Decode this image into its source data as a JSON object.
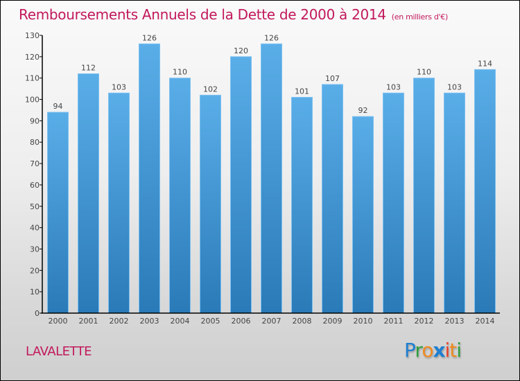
{
  "chart_data": {
    "type": "bar",
    "title": "Remboursements Annuels de la Dette de 2000 à 2014",
    "subtitle": "(en milliers d'€)",
    "categories": [
      "2000",
      "2001",
      "2002",
      "2003",
      "2004",
      "2005",
      "2006",
      "2007",
      "2008",
      "2009",
      "2010",
      "2011",
      "2012",
      "2013",
      "2014"
    ],
    "values": [
      94,
      112,
      103,
      126,
      110,
      102,
      120,
      126,
      101,
      107,
      92,
      103,
      110,
      103,
      114
    ],
    "xlabel": "",
    "ylabel": "",
    "ylim": [
      0,
      130
    ],
    "yticks": [
      0,
      10,
      20,
      30,
      40,
      50,
      60,
      70,
      80,
      90,
      100,
      110,
      120,
      130
    ],
    "grid": false,
    "bar_color_top": "#5aaee8",
    "bar_color_bottom": "#2a7ab8",
    "show_value_labels": true
  },
  "footer": {
    "city": "LAVALETTE",
    "logo": {
      "letters": [
        {
          "ch": "P",
          "color": "#1e7fd0"
        },
        {
          "ch": "r",
          "color": "#2e9e3e"
        },
        {
          "ch": "o",
          "color": "#f08a1c"
        },
        {
          "ch": "x",
          "color": "#1e7fd0"
        },
        {
          "ch": "i",
          "color": "#e8402a"
        },
        {
          "ch": "t",
          "color": "#f08a1c"
        },
        {
          "ch": "i",
          "color": "#2e9e3e"
        }
      ]
    }
  },
  "colors": {
    "title": "#c2185b",
    "text": "#444444"
  }
}
